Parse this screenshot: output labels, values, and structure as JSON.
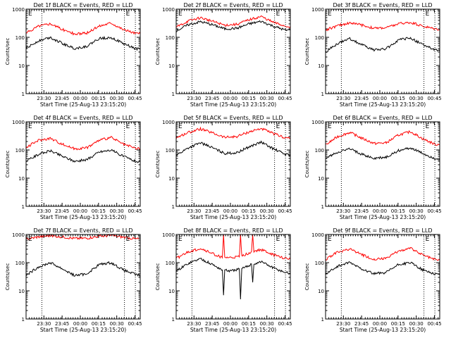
{
  "figure": {
    "bg_color": "#ffffff",
    "axis_color": "#000000",
    "events_color": "#000000",
    "lld_color": "#ff0000",
    "ylabel": "Counts/sec",
    "xlabel": "Start Time (25-Aug-13 23:15:20)",
    "x_ticks": [
      "23:30",
      "23:45",
      "00:00",
      "00:15",
      "00:30",
      "00:45"
    ],
    "y_ticks": [
      "1",
      "10",
      "100",
      "1000"
    ],
    "marker_labels": [
      "E",
      "E"
    ]
  },
  "chart_data": [
    {
      "type": "line",
      "title": "Det 1f BLACK = Events, RED = LLD",
      "x_unit": "minutes since 23:15:20",
      "xlim": [
        0,
        94
      ],
      "ylim": [
        1,
        1000
      ],
      "y_scale": "log",
      "vlines_x": [
        13,
        81,
        90
      ],
      "series": [
        {
          "name": "Events",
          "color": "#000000",
          "x": [
            0,
            10,
            20,
            30,
            40,
            50,
            60,
            70,
            80,
            90,
            94
          ],
          "values": [
            40,
            75,
            100,
            60,
            40,
            48,
            90,
            100,
            60,
            40,
            38
          ]
        },
        {
          "name": "LLD",
          "color": "#ff0000",
          "x": [
            0,
            10,
            20,
            30,
            40,
            50,
            60,
            70,
            80,
            90,
            94
          ],
          "values": [
            140,
            250,
            310,
            190,
            130,
            140,
            250,
            330,
            190,
            140,
            135
          ]
        }
      ]
    },
    {
      "type": "line",
      "title": "Det 2f BLACK = Events, RED = LLD",
      "x_unit": "minutes since 23:15:20",
      "xlim": [
        0,
        94
      ],
      "ylim": [
        1,
        1000
      ],
      "y_scale": "log",
      "vlines_x": [
        13,
        81,
        90
      ],
      "series": [
        {
          "name": "Events",
          "color": "#000000",
          "x": [
            0,
            10,
            20,
            30,
            40,
            50,
            60,
            70,
            80,
            90,
            94
          ],
          "values": [
            170,
            280,
            360,
            280,
            200,
            210,
            300,
            370,
            250,
            180,
            180
          ]
        },
        {
          "name": "LLD",
          "color": "#ff0000",
          "x": [
            0,
            10,
            20,
            30,
            40,
            50,
            60,
            70,
            80,
            90,
            94
          ],
          "values": [
            230,
            380,
            500,
            370,
            270,
            290,
            420,
            550,
            340,
            250,
            240
          ]
        }
      ]
    },
    {
      "type": "line",
      "title": "Det 3f BLACK = Events, RED = LLD",
      "x_unit": "minutes since 23:15:20",
      "xlim": [
        0,
        94
      ],
      "ylim": [
        1,
        1000
      ],
      "y_scale": "log",
      "vlines_x": [
        13,
        81,
        90
      ],
      "series": [
        {
          "name": "Events",
          "color": "#000000",
          "x": [
            0,
            10,
            20,
            30,
            40,
            50,
            60,
            70,
            80,
            90,
            94
          ],
          "values": [
            30,
            60,
            90,
            55,
            35,
            40,
            80,
            95,
            55,
            35,
            33
          ]
        },
        {
          "name": "LLD",
          "color": "#ff0000",
          "x": [
            0,
            10,
            20,
            30,
            40,
            50,
            60,
            70,
            80,
            90,
            94
          ],
          "values": [
            180,
            260,
            330,
            270,
            210,
            220,
            300,
            340,
            250,
            200,
            195
          ]
        }
      ]
    },
    {
      "type": "line",
      "title": "Det 4f BLACK = Events, RED = LLD",
      "x_unit": "minutes since 23:15:20",
      "xlim": [
        0,
        94
      ],
      "ylim": [
        1,
        1000
      ],
      "y_scale": "log",
      "vlines_x": [
        13,
        81,
        90
      ],
      "series": [
        {
          "name": "Events",
          "color": "#000000",
          "x": [
            0,
            10,
            20,
            30,
            40,
            50,
            60,
            70,
            80,
            90,
            94
          ],
          "values": [
            40,
            70,
            95,
            60,
            40,
            45,
            85,
            100,
            60,
            40,
            38
          ]
        },
        {
          "name": "LLD",
          "color": "#ff0000",
          "x": [
            0,
            10,
            20,
            30,
            40,
            50,
            60,
            70,
            80,
            90,
            94
          ],
          "values": [
            120,
            220,
            260,
            160,
            110,
            120,
            220,
            280,
            160,
            115,
            110
          ]
        }
      ]
    },
    {
      "type": "line",
      "title": "Det 5f BLACK = Events, RED = LLD",
      "x_unit": "minutes since 23:15:20",
      "xlim": [
        0,
        94
      ],
      "ylim": [
        1,
        1000
      ],
      "y_scale": "log",
      "vlines_x": [
        13,
        81,
        90
      ],
      "series": [
        {
          "name": "Events",
          "color": "#000000",
          "x": [
            0,
            10,
            20,
            30,
            40,
            50,
            60,
            70,
            80,
            90,
            94
          ],
          "values": [
            65,
            120,
            180,
            120,
            75,
            80,
            130,
            190,
            110,
            70,
            68
          ]
        },
        {
          "name": "LLD",
          "color": "#ff0000",
          "x": [
            0,
            10,
            20,
            30,
            40,
            50,
            60,
            70,
            80,
            90,
            94
          ],
          "values": [
            270,
            420,
            560,
            400,
            280,
            300,
            440,
            580,
            380,
            270,
            265
          ]
        }
      ]
    },
    {
      "type": "line",
      "title": "Det 6f BLACK = Events, RED = LLD",
      "x_unit": "minutes since 23:15:20",
      "xlim": [
        0,
        94
      ],
      "ylim": [
        1,
        1000
      ],
      "y_scale": "log",
      "vlines_x": [
        13,
        81,
        90
      ],
      "series": [
        {
          "name": "Events",
          "color": "#000000",
          "x": [
            0,
            10,
            20,
            30,
            40,
            50,
            60,
            70,
            80,
            90,
            94
          ],
          "values": [
            50,
            85,
            110,
            70,
            50,
            55,
            95,
            120,
            75,
            50,
            48
          ]
        },
        {
          "name": "LLD",
          "color": "#ff0000",
          "x": [
            0,
            10,
            20,
            30,
            40,
            50,
            60,
            70,
            80,
            90,
            94
          ],
          "values": [
            150,
            300,
            420,
            260,
            170,
            180,
            340,
            450,
            250,
            160,
            155
          ]
        }
      ]
    },
    {
      "type": "line",
      "title": "Det 7f BLACK = Events, RED = LLD",
      "x_unit": "minutes since 23:15:20",
      "xlim": [
        0,
        94
      ],
      "ylim": [
        1,
        1000
      ],
      "y_scale": "log",
      "vlines_x": [
        13,
        81,
        90
      ],
      "series": [
        {
          "name": "Events",
          "color": "#000000",
          "x": [
            0,
            10,
            20,
            30,
            40,
            50,
            60,
            70,
            80,
            90,
            94
          ],
          "values": [
            35,
            70,
            100,
            60,
            35,
            40,
            85,
            100,
            55,
            38,
            35
          ]
        },
        {
          "name": "LLD",
          "color": "#ff0000",
          "x": [
            0,
            10,
            20,
            30,
            40,
            50,
            60,
            70,
            80,
            90,
            94
          ],
          "values": [
            680,
            820,
            900,
            820,
            720,
            740,
            860,
            920,
            800,
            700,
            690
          ]
        }
      ]
    },
    {
      "type": "line",
      "title": "Det 8f BLACK = Events, RED = LLD",
      "x_unit": "minutes since 23:15:20",
      "xlim": [
        0,
        94
      ],
      "ylim": [
        1,
        1000
      ],
      "y_scale": "log",
      "vlines_x": [
        13,
        81,
        90
      ],
      "series": [
        {
          "name": "Events",
          "color": "#000000",
          "x": [
            0,
            10,
            20,
            30,
            38,
            39,
            40,
            45,
            52,
            53,
            54,
            60,
            62,
            63,
            64,
            70,
            80,
            90,
            94
          ],
          "values": [
            50,
            95,
            140,
            85,
            55,
            7,
            55,
            50,
            60,
            5,
            60,
            80,
            90,
            20,
            90,
            110,
            65,
            45,
            42
          ]
        },
        {
          "name": "LLD",
          "color": "#ff0000",
          "x": [
            0,
            10,
            20,
            30,
            38,
            39,
            40,
            45,
            52,
            53,
            54,
            60,
            62,
            63,
            64,
            70,
            80,
            90,
            94
          ],
          "values": [
            140,
            240,
            320,
            210,
            150,
            1000,
            150,
            150,
            160,
            1000,
            170,
            220,
            250,
            1000,
            250,
            290,
            190,
            140,
            135
          ]
        }
      ]
    },
    {
      "type": "line",
      "title": "Det 9f BLACK = Events, RED = LLD",
      "x_unit": "minutes since 23:15:20",
      "xlim": [
        0,
        94
      ],
      "ylim": [
        1,
        1000
      ],
      "y_scale": "log",
      "vlines_x": [
        13,
        81,
        90
      ],
      "series": [
        {
          "name": "Events",
          "color": "#000000",
          "x": [
            0,
            10,
            20,
            30,
            40,
            50,
            60,
            70,
            80,
            90,
            94
          ],
          "values": [
            40,
            75,
            100,
            60,
            40,
            45,
            85,
            100,
            55,
            40,
            38
          ]
        },
        {
          "name": "LLD",
          "color": "#ff0000",
          "x": [
            0,
            10,
            20,
            30,
            40,
            50,
            60,
            70,
            80,
            90,
            94
          ],
          "values": [
            130,
            240,
            300,
            190,
            130,
            140,
            260,
            320,
            190,
            130,
            125
          ]
        }
      ]
    }
  ]
}
